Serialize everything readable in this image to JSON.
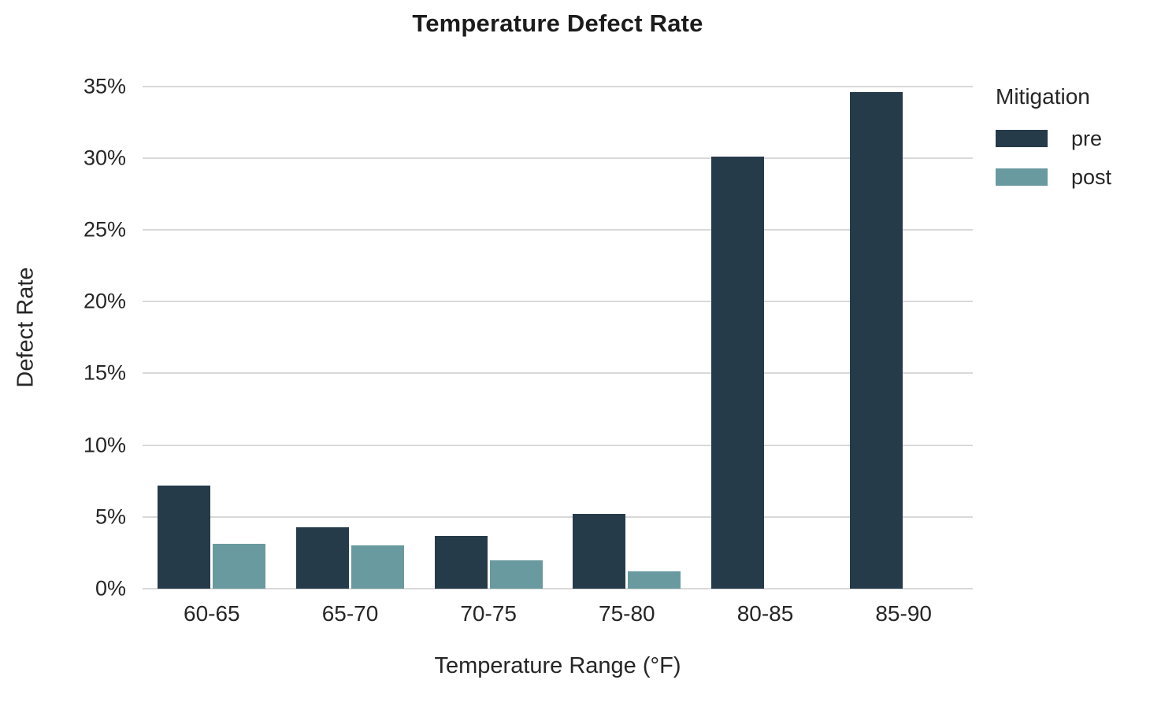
{
  "chart_data": {
    "type": "bar",
    "title": "Temperature Defect Rate",
    "xlabel": "Temperature Range (°F)",
    "ylabel": "Defect Rate",
    "categories": [
      "60-65",
      "65-70",
      "70-75",
      "75-80",
      "80-85",
      "85-90"
    ],
    "series": [
      {
        "name": "pre",
        "color": "#263b4a",
        "values": [
          7.2,
          4.3,
          3.7,
          5.2,
          30.1,
          34.6
        ]
      },
      {
        "name": "post",
        "color": "#689a9f",
        "values": [
          3.1,
          3.0,
          2.0,
          1.2,
          0,
          0
        ]
      }
    ],
    "ylim": [
      0,
      36.3
    ],
    "yticks": [
      0,
      5,
      10,
      15,
      20,
      25,
      30,
      35
    ],
    "ytick_suffix": "%",
    "grid": true,
    "grid_color": "#d9d9d9",
    "text_color": "#262626",
    "legend_title": "Mitigation",
    "legend_position": "upper-right-outside"
  }
}
